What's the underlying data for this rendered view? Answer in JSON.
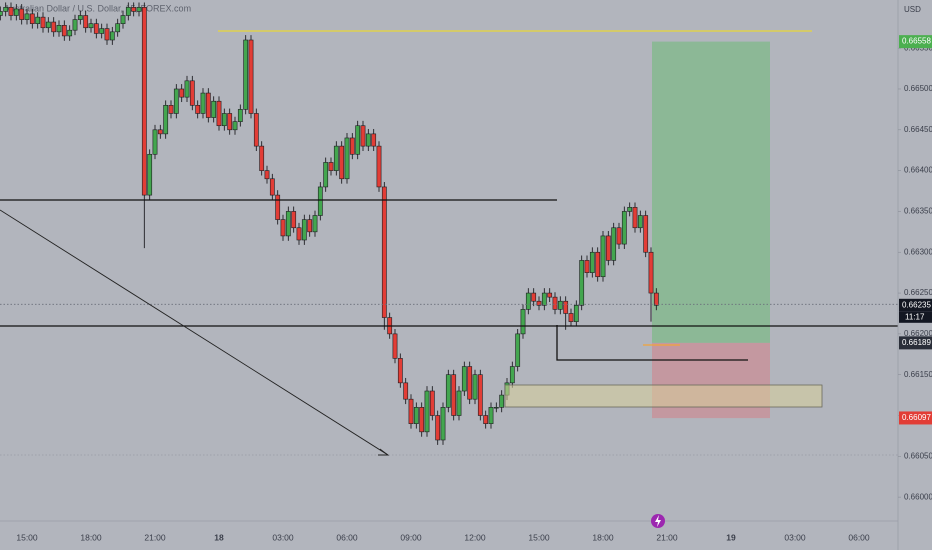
{
  "chart_data": {
    "type": "candlestick",
    "title": "Australian Dollar / U.S. Dollar, 15, FOREX.com",
    "currency": "USD",
    "up_color": "#43a64f",
    "down_color": "#e23d36",
    "ylim": [
      0.65972,
      0.66609
    ],
    "yticks": [
      {
        "value": 0.6655,
        "label": "0.66550"
      },
      {
        "value": 0.665,
        "label": "0.66500"
      },
      {
        "value": 0.6645,
        "label": "0.66450"
      },
      {
        "value": 0.664,
        "label": "0.66400"
      },
      {
        "value": 0.6635,
        "label": "0.66350"
      },
      {
        "value": 0.663,
        "label": "0.66300"
      },
      {
        "value": 0.6625,
        "label": "0.66250"
      },
      {
        "value": 0.662,
        "label": "0.66200"
      },
      {
        "value": 0.6615,
        "label": "0.66150"
      },
      {
        "value": 0.661,
        "label": "0.66100"
      },
      {
        "value": 0.6605,
        "label": "0.66050"
      },
      {
        "value": 0.66,
        "label": "0.66000"
      }
    ],
    "xtick_labels": [
      "15:00",
      "18:00",
      "21:00",
      "18",
      "03:00",
      "06:00",
      "09:00",
      "12:00",
      "15:00",
      "18:00",
      "21:00",
      "19",
      "03:00",
      "06:00"
    ],
    "price_labels": [
      {
        "value": 0.66558,
        "color": "#4caf50"
      },
      {
        "value": 0.66235,
        "color": "#131722",
        "countdown": "11:17"
      },
      {
        "value": 0.66189,
        "color": "#2a2e39"
      },
      {
        "value": 0.66097,
        "color": "#e23d36"
      }
    ],
    "ohlc": [
      [
        0.6659,
        0.66601,
        0.66584,
        0.66595
      ],
      [
        0.66595,
        0.66606,
        0.66589,
        0.666
      ],
      [
        0.666,
        0.66606,
        0.66584,
        0.6659
      ],
      [
        0.6659,
        0.66604,
        0.66584,
        0.66598
      ],
      [
        0.66598,
        0.66604,
        0.66579,
        0.66585
      ],
      [
        0.66585,
        0.66598,
        0.66579,
        0.66592
      ],
      [
        0.66592,
        0.66598,
        0.66574,
        0.6658
      ],
      [
        0.6658,
        0.66594,
        0.66574,
        0.66588
      ],
      [
        0.66588,
        0.66594,
        0.66569,
        0.66575
      ],
      [
        0.66575,
        0.66588,
        0.66569,
        0.66582
      ],
      [
        0.66582,
        0.66588,
        0.66564,
        0.6657
      ],
      [
        0.6657,
        0.66584,
        0.66564,
        0.66578
      ],
      [
        0.66578,
        0.66584,
        0.66559,
        0.66565
      ],
      [
        0.66565,
        0.66578,
        0.66559,
        0.66572
      ],
      [
        0.66572,
        0.66591,
        0.66566,
        0.66585
      ],
      [
        0.66585,
        0.66596,
        0.66579,
        0.6659
      ],
      [
        0.6659,
        0.66596,
        0.66569,
        0.66575
      ],
      [
        0.66575,
        0.66586,
        0.66569,
        0.6658
      ],
      [
        0.6658,
        0.66586,
        0.66562,
        0.66568
      ],
      [
        0.66568,
        0.6658,
        0.66562,
        0.66574
      ],
      [
        0.66574,
        0.6658,
        0.66554,
        0.6656
      ],
      [
        0.6656,
        0.66576,
        0.66554,
        0.6657
      ],
      [
        0.6657,
        0.66586,
        0.66564,
        0.6658
      ],
      [
        0.6658,
        0.66596,
        0.66574,
        0.6659
      ],
      [
        0.6659,
        0.66606,
        0.66584,
        0.666
      ],
      [
        0.666,
        0.66606,
        0.66589,
        0.66595
      ],
      [
        0.66595,
        0.66606,
        0.66589,
        0.666
      ],
      [
        0.666,
        0.66606,
        0.66305,
        0.6637
      ],
      [
        0.6637,
        0.66426,
        0.66364,
        0.6642
      ],
      [
        0.6642,
        0.66456,
        0.66414,
        0.6645
      ],
      [
        0.6645,
        0.66456,
        0.66439,
        0.66445
      ],
      [
        0.66445,
        0.66486,
        0.66439,
        0.6648
      ],
      [
        0.6648,
        0.66486,
        0.66464,
        0.6647
      ],
      [
        0.6647,
        0.66506,
        0.66464,
        0.665
      ],
      [
        0.665,
        0.66506,
        0.66484,
        0.6649
      ],
      [
        0.6649,
        0.66516,
        0.66484,
        0.6651
      ],
      [
        0.6651,
        0.66516,
        0.66474,
        0.6648
      ],
      [
        0.6648,
        0.66486,
        0.66464,
        0.6647
      ],
      [
        0.6647,
        0.66501,
        0.66464,
        0.66495
      ],
      [
        0.66495,
        0.66501,
        0.66459,
        0.66465
      ],
      [
        0.66465,
        0.66491,
        0.66459,
        0.66485
      ],
      [
        0.66485,
        0.66491,
        0.66449,
        0.66455
      ],
      [
        0.66455,
        0.66476,
        0.66449,
        0.6647
      ],
      [
        0.6647,
        0.66476,
        0.66444,
        0.6645
      ],
      [
        0.6645,
        0.66466,
        0.66444,
        0.6646
      ],
      [
        0.6646,
        0.66481,
        0.66454,
        0.66475
      ],
      [
        0.66475,
        0.66566,
        0.66469,
        0.6656
      ],
      [
        0.6656,
        0.66566,
        0.66464,
        0.6647
      ],
      [
        0.6647,
        0.66476,
        0.66424,
        0.6643
      ],
      [
        0.6643,
        0.66436,
        0.66394,
        0.664
      ],
      [
        0.664,
        0.66406,
        0.66384,
        0.6639
      ],
      [
        0.6639,
        0.66396,
        0.66364,
        0.6637
      ],
      [
        0.6637,
        0.66376,
        0.66334,
        0.6634
      ],
      [
        0.6634,
        0.66346,
        0.66314,
        0.6632
      ],
      [
        0.6632,
        0.66356,
        0.66314,
        0.6635
      ],
      [
        0.6635,
        0.66356,
        0.66324,
        0.6633
      ],
      [
        0.6633,
        0.66336,
        0.66309,
        0.66315
      ],
      [
        0.66315,
        0.66346,
        0.66309,
        0.6634
      ],
      [
        0.6634,
        0.66346,
        0.66319,
        0.66325
      ],
      [
        0.66325,
        0.66351,
        0.66319,
        0.66345
      ],
      [
        0.66345,
        0.66386,
        0.66339,
        0.6638
      ],
      [
        0.6638,
        0.66416,
        0.66374,
        0.6641
      ],
      [
        0.6641,
        0.66416,
        0.66394,
        0.664
      ],
      [
        0.664,
        0.66436,
        0.66394,
        0.6643
      ],
      [
        0.6643,
        0.66436,
        0.66384,
        0.6639
      ],
      [
        0.6639,
        0.66446,
        0.66384,
        0.6644
      ],
      [
        0.6644,
        0.66446,
        0.66414,
        0.6642
      ],
      [
        0.6642,
        0.66461,
        0.66414,
        0.66455
      ],
      [
        0.66455,
        0.66461,
        0.66424,
        0.6643
      ],
      [
        0.6643,
        0.66451,
        0.66424,
        0.66445
      ],
      [
        0.66445,
        0.66451,
        0.66424,
        0.6643
      ],
      [
        0.6643,
        0.66436,
        0.66374,
        0.6638
      ],
      [
        0.6638,
        0.66386,
        0.66205,
        0.6622
      ],
      [
        0.6622,
        0.66226,
        0.66194,
        0.662
      ],
      [
        0.662,
        0.66206,
        0.66164,
        0.6617
      ],
      [
        0.6617,
        0.66176,
        0.66134,
        0.6614
      ],
      [
        0.6614,
        0.66146,
        0.66114,
        0.6612
      ],
      [
        0.6612,
        0.66126,
        0.66084,
        0.6609
      ],
      [
        0.6609,
        0.66116,
        0.66084,
        0.6611
      ],
      [
        0.6611,
        0.66116,
        0.66074,
        0.6608
      ],
      [
        0.6608,
        0.66136,
        0.66074,
        0.6613
      ],
      [
        0.6613,
        0.66136,
        0.66094,
        0.661
      ],
      [
        0.661,
        0.66106,
        0.66064,
        0.6607
      ],
      [
        0.6607,
        0.66116,
        0.66064,
        0.6611
      ],
      [
        0.6611,
        0.66156,
        0.66104,
        0.6615
      ],
      [
        0.6615,
        0.66156,
        0.66094,
        0.661
      ],
      [
        0.661,
        0.66136,
        0.66094,
        0.6613
      ],
      [
        0.6613,
        0.66166,
        0.66124,
        0.6616
      ],
      [
        0.6616,
        0.66166,
        0.66114,
        0.6612
      ],
      [
        0.6612,
        0.66156,
        0.66114,
        0.6615
      ],
      [
        0.6615,
        0.66156,
        0.66094,
        0.661
      ],
      [
        0.661,
        0.66106,
        0.66084,
        0.6609
      ],
      [
        0.6609,
        0.66116,
        0.66084,
        0.6611
      ],
      [
        0.6611,
        0.66116,
        0.66104,
        0.6611
      ],
      [
        0.6611,
        0.66131,
        0.66104,
        0.66125
      ],
      [
        0.66125,
        0.66146,
        0.66119,
        0.6614
      ],
      [
        0.6614,
        0.66166,
        0.66134,
        0.6616
      ],
      [
        0.6616,
        0.66206,
        0.66154,
        0.662
      ],
      [
        0.662,
        0.66236,
        0.66194,
        0.6623
      ],
      [
        0.6623,
        0.66256,
        0.66224,
        0.6625
      ],
      [
        0.6625,
        0.66256,
        0.66234,
        0.6624
      ],
      [
        0.6624,
        0.66246,
        0.66229,
        0.66235
      ],
      [
        0.66235,
        0.66256,
        0.66229,
        0.6625
      ],
      [
        0.6625,
        0.66256,
        0.66239,
        0.66245
      ],
      [
        0.66245,
        0.66251,
        0.66224,
        0.6623
      ],
      [
        0.6623,
        0.66246,
        0.66224,
        0.6624
      ],
      [
        0.6624,
        0.66246,
        0.66205,
        0.66225
      ],
      [
        0.66225,
        0.66231,
        0.66209,
        0.66215
      ],
      [
        0.66215,
        0.66241,
        0.66209,
        0.66235
      ],
      [
        0.66235,
        0.66296,
        0.66229,
        0.6629
      ],
      [
        0.6629,
        0.66296,
        0.66269,
        0.66275
      ],
      [
        0.66275,
        0.66306,
        0.66269,
        0.663
      ],
      [
        0.663,
        0.66306,
        0.66264,
        0.6627
      ],
      [
        0.6627,
        0.66326,
        0.66264,
        0.6632
      ],
      [
        0.6632,
        0.66326,
        0.66284,
        0.6629
      ],
      [
        0.6629,
        0.66336,
        0.66284,
        0.6633
      ],
      [
        0.6633,
        0.66336,
        0.66304,
        0.6631
      ],
      [
        0.6631,
        0.66356,
        0.66304,
        0.6635
      ],
      [
        0.6635,
        0.66361,
        0.66344,
        0.66355
      ],
      [
        0.66355,
        0.66361,
        0.66324,
        0.6633
      ],
      [
        0.6633,
        0.66351,
        0.66324,
        0.66345
      ],
      [
        0.66345,
        0.66351,
        0.66294,
        0.663
      ],
      [
        0.663,
        0.66306,
        0.66215,
        0.6625
      ],
      [
        0.6625,
        0.66256,
        0.66229,
        0.66235
      ]
    ]
  }
}
